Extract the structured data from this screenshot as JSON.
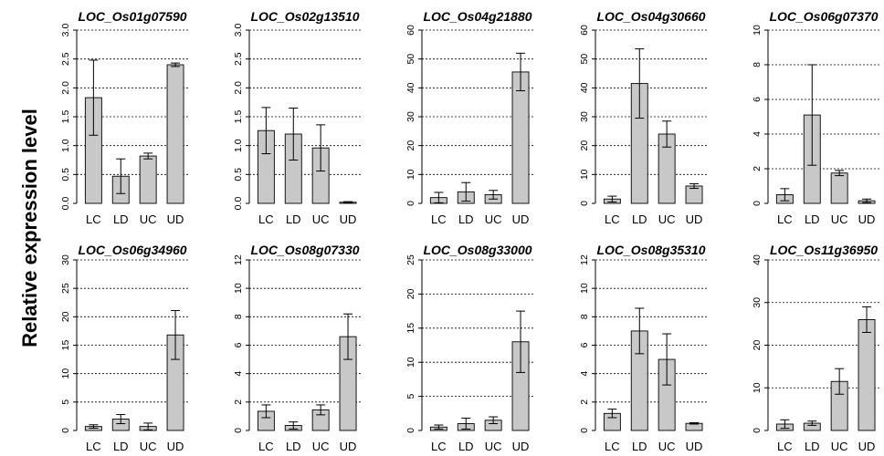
{
  "ylabel": "Relative expression level",
  "chart_data": [
    {
      "type": "bar",
      "title": "LOC_Os01g07590",
      "categories": [
        "LC",
        "LD",
        "UC",
        "UD"
      ],
      "values": [
        1.83,
        0.47,
        0.82,
        2.4
      ],
      "errors": [
        0.65,
        0.3,
        0.05,
        0.03
      ],
      "ylim": [
        0,
        3.0
      ],
      "yticks": [
        "0.0",
        "0.5",
        "1.0",
        "1.5",
        "2.0",
        "2.5",
        "3.0"
      ],
      "grid": true
    },
    {
      "type": "bar",
      "title": "LOC_Os02g13510",
      "categories": [
        "LC",
        "LD",
        "UC",
        "UD"
      ],
      "values": [
        1.26,
        1.2,
        0.96,
        0.02
      ],
      "errors": [
        0.4,
        0.45,
        0.4,
        0.01
      ],
      "ylim": [
        0,
        3.0
      ],
      "yticks": [
        "0.0",
        "0.5",
        "1.0",
        "1.5",
        "2.0",
        "2.5",
        "3.0"
      ],
      "grid": true
    },
    {
      "type": "bar",
      "title": "LOC_Os04g21880",
      "categories": [
        "LC",
        "LD",
        "UC",
        "UD"
      ],
      "values": [
        2.0,
        4.0,
        3.0,
        45.5
      ],
      "errors": [
        1.8,
        3.2,
        1.5,
        6.5
      ],
      "ylim": [
        0,
        60
      ],
      "yticks": [
        "0",
        "10",
        "20",
        "30",
        "40",
        "50",
        "60"
      ],
      "grid": true
    },
    {
      "type": "bar",
      "title": "LOC_Os04g30660",
      "categories": [
        "LC",
        "LD",
        "UC",
        "UD"
      ],
      "values": [
        1.5,
        41.5,
        24.0,
        6.0
      ],
      "errors": [
        1.0,
        12.0,
        4.5,
        0.8
      ],
      "ylim": [
        0,
        60
      ],
      "yticks": [
        "0",
        "10",
        "20",
        "30",
        "40",
        "50",
        "60"
      ],
      "grid": true
    },
    {
      "type": "bar",
      "title": "LOC_Os06g07370",
      "categories": [
        "LC",
        "LD",
        "UC",
        "UD"
      ],
      "values": [
        0.5,
        5.1,
        1.75,
        0.15
      ],
      "errors": [
        0.35,
        2.9,
        0.15,
        0.1
      ],
      "ylim": [
        0,
        10
      ],
      "yticks": [
        "0",
        "2",
        "4",
        "6",
        "8",
        "10"
      ],
      "grid": true
    },
    {
      "type": "bar",
      "title": "LOC_Os06g34960",
      "categories": [
        "LC",
        "LD",
        "UC",
        "UD"
      ],
      "values": [
        0.7,
        2.0,
        0.7,
        16.8
      ],
      "errors": [
        0.3,
        0.8,
        0.6,
        4.3
      ],
      "ylim": [
        0,
        30
      ],
      "yticks": [
        "0",
        "5",
        "10",
        "15",
        "20",
        "25",
        "30"
      ],
      "grid": true
    },
    {
      "type": "bar",
      "title": "LOC_Os08g07330",
      "categories": [
        "LC",
        "LD",
        "UC",
        "UD"
      ],
      "values": [
        1.35,
        0.35,
        1.45,
        6.6
      ],
      "errors": [
        0.45,
        0.25,
        0.35,
        1.6
      ],
      "ylim": [
        0,
        12
      ],
      "yticks": [
        "0",
        "2",
        "4",
        "6",
        "8",
        "10",
        "12"
      ],
      "grid": true
    },
    {
      "type": "bar",
      "title": "LOC_Os08g33000",
      "categories": [
        "LC",
        "LD",
        "UC",
        "UD"
      ],
      "values": [
        0.5,
        1.0,
        1.5,
        13.0
      ],
      "errors": [
        0.3,
        0.8,
        0.5,
        4.5
      ],
      "ylim": [
        0,
        25
      ],
      "yticks": [
        "0",
        "5",
        "10",
        "15",
        "20",
        "25"
      ],
      "grid": true
    },
    {
      "type": "bar",
      "title": "LOC_Os08g35310",
      "categories": [
        "LC",
        "LD",
        "UC",
        "UD"
      ],
      "values": [
        1.2,
        7.0,
        5.0,
        0.5
      ],
      "errors": [
        0.3,
        1.6,
        1.8,
        0.05
      ],
      "ylim": [
        0,
        12
      ],
      "yticks": [
        "0",
        "2",
        "4",
        "6",
        "8",
        "10",
        "12"
      ],
      "grid": true
    },
    {
      "type": "bar",
      "title": "LOC_Os11g36950",
      "categories": [
        "LC",
        "LD",
        "UC",
        "UD"
      ],
      "values": [
        1.5,
        1.7,
        11.5,
        26.0
      ],
      "errors": [
        1.0,
        0.5,
        3.0,
        3.0
      ],
      "ylim": [
        0,
        40
      ],
      "yticks": [
        "0",
        "10",
        "20",
        "30",
        "40"
      ],
      "grid": true
    }
  ]
}
